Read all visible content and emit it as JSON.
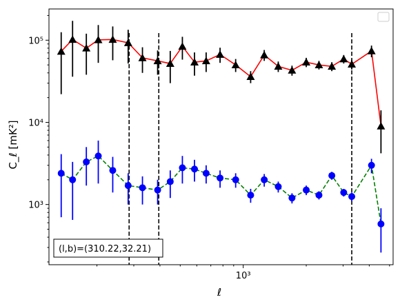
{
  "chart_data": {
    "type": "scatter",
    "xscale": "log",
    "yscale": "log",
    "xlim": [
      118,
      5200
    ],
    "ylim": [
      185,
      240000
    ],
    "xlabel": "ℓ",
    "ylabel": "C_ℓ [mK²]",
    "x_ticks": [
      {
        "value": 1000,
        "label": "10³"
      }
    ],
    "y_ticks": [
      {
        "value": 1000,
        "label": "10³"
      },
      {
        "value": 10000,
        "label": "10⁴"
      },
      {
        "value": 100000,
        "label": "10⁵"
      }
    ],
    "annotation": "(l,b)=(310.22,32.21)",
    "legend": "empty box, upper-right",
    "vlines": [
      285,
      395,
      3300
    ],
    "series": [
      {
        "marker": "triangle",
        "marker_color": "#000000",
        "line_color": "#ff0000",
        "line_style": "solid",
        "points": [
          {
            "x": 135,
            "y": 73000,
            "lo": 22000,
            "hi": 125000
          },
          {
            "x": 153,
            "y": 102000,
            "lo": 36000,
            "hi": 172000
          },
          {
            "x": 178,
            "y": 80000,
            "lo": 38000,
            "hi": 120000
          },
          {
            "x": 203,
            "y": 101000,
            "lo": 53000,
            "hi": 153000
          },
          {
            "x": 238,
            "y": 102000,
            "lo": 57000,
            "hi": 147000
          },
          {
            "x": 282,
            "y": 93000,
            "lo": 52000,
            "hi": 134000
          },
          {
            "x": 330,
            "y": 61000,
            "lo": 40000,
            "hi": 82000
          },
          {
            "x": 390,
            "y": 56000,
            "lo": 38000,
            "hi": 75000
          },
          {
            "x": 448,
            "y": 52000,
            "lo": 30000,
            "hi": 74000
          },
          {
            "x": 512,
            "y": 84000,
            "lo": 58000,
            "hi": 110000
          },
          {
            "x": 585,
            "y": 54000,
            "lo": 37000,
            "hi": 71000
          },
          {
            "x": 665,
            "y": 56000,
            "lo": 41000,
            "hi": 71000
          },
          {
            "x": 775,
            "y": 67000,
            "lo": 53000,
            "hi": 81000
          },
          {
            "x": 920,
            "y": 50000,
            "lo": 41000,
            "hi": 59000
          },
          {
            "x": 1085,
            "y": 36000,
            "lo": 30000,
            "hi": 42000
          },
          {
            "x": 1260,
            "y": 66000,
            "lo": 56000,
            "hi": 76000
          },
          {
            "x": 1470,
            "y": 48000,
            "lo": 41000,
            "hi": 55000
          },
          {
            "x": 1710,
            "y": 43000,
            "lo": 37000,
            "hi": 49000
          },
          {
            "x": 2000,
            "y": 54000,
            "lo": 47000,
            "hi": 61000
          },
          {
            "x": 2300,
            "y": 50000,
            "lo": 44000,
            "hi": 56000
          },
          {
            "x": 2650,
            "y": 48000,
            "lo": 42000,
            "hi": 54000
          },
          {
            "x": 3020,
            "y": 59000,
            "lo": 52000,
            "hi": 66000
          },
          {
            "x": 3300,
            "y": 51000,
            "lo": 44000,
            "hi": 58000
          },
          {
            "x": 4100,
            "y": 74000,
            "lo": 62000,
            "hi": 86000
          },
          {
            "x": 4550,
            "y": 9000,
            "lo": 4200,
            "hi": 14000
          }
        ]
      },
      {
        "marker": "circle",
        "marker_color": "#0000ff",
        "line_color": "#008000",
        "line_style": "dashed",
        "points": [
          {
            "x": 135,
            "y": 2400,
            "lo": 700,
            "hi": 4100
          },
          {
            "x": 153,
            "y": 2000,
            "lo": 650,
            "hi": 3300
          },
          {
            "x": 178,
            "y": 3300,
            "lo": 1700,
            "hi": 5000
          },
          {
            "x": 203,
            "y": 3900,
            "lo": 1800,
            "hi": 6000
          },
          {
            "x": 238,
            "y": 2600,
            "lo": 1400,
            "hi": 3800
          },
          {
            "x": 282,
            "y": 1700,
            "lo": 1000,
            "hi": 2400
          },
          {
            "x": 330,
            "y": 1600,
            "lo": 1000,
            "hi": 2200
          },
          {
            "x": 390,
            "y": 1500,
            "lo": 1000,
            "hi": 2000
          },
          {
            "x": 448,
            "y": 1900,
            "lo": 1200,
            "hi": 2600
          },
          {
            "x": 512,
            "y": 2800,
            "lo": 1800,
            "hi": 3900
          },
          {
            "x": 585,
            "y": 2700,
            "lo": 1900,
            "hi": 3500
          },
          {
            "x": 665,
            "y": 2400,
            "lo": 1800,
            "hi": 3000
          },
          {
            "x": 775,
            "y": 2100,
            "lo": 1600,
            "hi": 2600
          },
          {
            "x": 920,
            "y": 2000,
            "lo": 1600,
            "hi": 2400
          },
          {
            "x": 1085,
            "y": 1300,
            "lo": 1050,
            "hi": 1550
          },
          {
            "x": 1260,
            "y": 2000,
            "lo": 1650,
            "hi": 2350
          },
          {
            "x": 1470,
            "y": 1650,
            "lo": 1400,
            "hi": 1900
          },
          {
            "x": 1710,
            "y": 1200,
            "lo": 1030,
            "hi": 1370
          },
          {
            "x": 2000,
            "y": 1500,
            "lo": 1300,
            "hi": 1700
          },
          {
            "x": 2300,
            "y": 1300,
            "lo": 1150,
            "hi": 1450
          },
          {
            "x": 2650,
            "y": 2250,
            "lo": 2000,
            "hi": 2500
          },
          {
            "x": 3020,
            "y": 1400,
            "lo": 1250,
            "hi": 1550
          },
          {
            "x": 3300,
            "y": 1250,
            "lo": 1100,
            "hi": 1400
          },
          {
            "x": 4100,
            "y": 3000,
            "lo": 2400,
            "hi": 3600
          },
          {
            "x": 4550,
            "y": 580,
            "lo": 260,
            "hi": 900
          }
        ]
      }
    ]
  }
}
